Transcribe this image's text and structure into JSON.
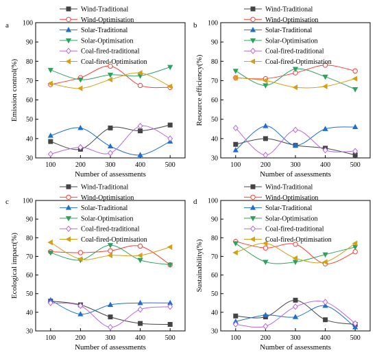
{
  "chart_data": [
    {
      "type": "line",
      "panel_letter": "a",
      "xlabel": "Number of assessments",
      "ylabel": "Emission control(%)",
      "x": [
        100,
        200,
        300,
        400,
        500
      ],
      "xlim": [
        50,
        550
      ],
      "ylim": [
        30,
        100
      ],
      "yticks": [
        30,
        40,
        50,
        60,
        70,
        80,
        90,
        100
      ],
      "smooth": true,
      "grid": false,
      "legend_position": "top-center",
      "series": [
        {
          "name": "Wind-Traditional",
          "color": "#444444",
          "marker": "square",
          "values": [
            38.5,
            34.5,
            45.5,
            44,
            47
          ]
        },
        {
          "name": "Wind-Optimisation",
          "color": "#ff3b30",
          "marker": "circle",
          "values": [
            68,
            71.5,
            77.5,
            67.5,
            66.5
          ]
        },
        {
          "name": "Solar-Traditional",
          "color": "#1f6fd1",
          "marker": "triangle-up",
          "values": [
            41.5,
            45.5,
            36,
            31.5,
            38.5
          ]
        },
        {
          "name": "Solar-Optimisation",
          "color": "#2ca25f",
          "marker": "triangle-down",
          "values": [
            75.5,
            70.5,
            73,
            72.5,
            77
          ]
        },
        {
          "name": "Coal-fired-traditional",
          "color": "#b866e0",
          "marker": "diamond",
          "values": [
            32,
            35.5,
            32.5,
            46.5,
            40
          ]
        },
        {
          "name": "Coal-fired-Optimisation",
          "color": "#d4a017",
          "marker": "triangle-left",
          "values": [
            68.5,
            66,
            70.5,
            74,
            67
          ]
        }
      ]
    },
    {
      "type": "line",
      "panel_letter": "b",
      "xlabel": "Number of assessments",
      "ylabel": "Resource efficiency(%)",
      "x": [
        100,
        200,
        300,
        400,
        500
      ],
      "xlim": [
        50,
        550
      ],
      "ylim": [
        30,
        100
      ],
      "yticks": [
        30,
        40,
        50,
        60,
        70,
        80,
        90,
        100
      ],
      "smooth": true,
      "grid": false,
      "legend_position": "top-center",
      "series": [
        {
          "name": "Wind-Traditional",
          "color": "#444444",
          "marker": "square",
          "values": [
            37,
            40,
            36.5,
            35,
            31.5
          ]
        },
        {
          "name": "Wind-Optimisation",
          "color": "#ff3b30",
          "marker": "circle",
          "values": [
            71.5,
            71,
            74,
            78,
            75
          ]
        },
        {
          "name": "Solar-Traditional",
          "color": "#1f6fd1",
          "marker": "triangle-up",
          "values": [
            34,
            46.5,
            36.5,
            45,
            46
          ]
        },
        {
          "name": "Solar-Optimisation",
          "color": "#2ca25f",
          "marker": "triangle-down",
          "values": [
            75,
            67.5,
            76,
            72,
            65.5
          ]
        },
        {
          "name": "Coal-fired-traditional",
          "color": "#b866e0",
          "marker": "diamond",
          "values": [
            45.5,
            31.5,
            44.5,
            34,
            33.5
          ]
        },
        {
          "name": "Coal-fired-Optimisation",
          "color": "#d4a017",
          "marker": "triangle-left",
          "values": [
            71.5,
            70,
            66.5,
            67,
            71
          ]
        }
      ]
    },
    {
      "type": "line",
      "panel_letter": "c",
      "xlabel": "Number of assessments",
      "ylabel": "Ecological impact(%)",
      "x": [
        100,
        200,
        300,
        400,
        500
      ],
      "xlim": [
        50,
        550
      ],
      "ylim": [
        30,
        100
      ],
      "yticks": [
        30,
        40,
        50,
        60,
        70,
        80,
        90,
        100
      ],
      "smooth": true,
      "grid": false,
      "legend_position": "top-center",
      "series": [
        {
          "name": "Wind-Traditional",
          "color": "#444444",
          "marker": "square",
          "values": [
            46,
            44,
            37.5,
            34,
            33.5
          ]
        },
        {
          "name": "Wind-Optimisation",
          "color": "#ff3b30",
          "marker": "circle",
          "values": [
            72.5,
            72,
            73,
            75.5,
            65.5
          ]
        },
        {
          "name": "Solar-Traditional",
          "color": "#1f6fd1",
          "marker": "triangle-up",
          "values": [
            46.5,
            39,
            44,
            45,
            45
          ]
        },
        {
          "name": "Solar-Optimisation",
          "color": "#2ca25f",
          "marker": "triangle-down",
          "values": [
            72,
            68,
            76,
            68,
            65.5
          ]
        },
        {
          "name": "Coal-fired-traditional",
          "color": "#b866e0",
          "marker": "diamond",
          "values": [
            45,
            43.5,
            32,
            41.5,
            43
          ]
        },
        {
          "name": "Coal-fired-Optimisation",
          "color": "#d4a017",
          "marker": "triangle-left",
          "values": [
            77.5,
            68.5,
            70.5,
            70.5,
            75
          ]
        }
      ]
    },
    {
      "type": "line",
      "panel_letter": "d",
      "xlabel": "Number of assessments",
      "ylabel": "Sustainability(%)",
      "x": [
        100,
        200,
        300,
        400,
        500
      ],
      "xlim": [
        50,
        550
      ],
      "ylim": [
        30,
        100
      ],
      "yticks": [
        30,
        40,
        50,
        60,
        70,
        80,
        90,
        100
      ],
      "smooth": true,
      "grid": false,
      "legend_position": "top-center",
      "series": [
        {
          "name": "Wind-Traditional",
          "color": "#444444",
          "marker": "square",
          "values": [
            38,
            37.5,
            46.5,
            36,
            33.5
          ]
        },
        {
          "name": "Wind-Optimisation",
          "color": "#ff3b30",
          "marker": "circle",
          "values": [
            78,
            74.5,
            76.5,
            66,
            72.5
          ]
        },
        {
          "name": "Solar-Traditional",
          "color": "#1f6fd1",
          "marker": "triangle-up",
          "values": [
            35,
            38.5,
            37.5,
            43.5,
            32
          ]
        },
        {
          "name": "Solar-Optimisation",
          "color": "#2ca25f",
          "marker": "triangle-down",
          "values": [
            77,
            67,
            67,
            71,
            75
          ]
        },
        {
          "name": "Coal-fired-traditional",
          "color": "#b866e0",
          "marker": "diamond",
          "values": [
            33.5,
            32.5,
            43,
            45.5,
            34
          ]
        },
        {
          "name": "Coal-fired-Optimisation",
          "color": "#d4a017",
          "marker": "triangle-left",
          "values": [
            72,
            77,
            69,
            67,
            77
          ]
        }
      ]
    }
  ]
}
